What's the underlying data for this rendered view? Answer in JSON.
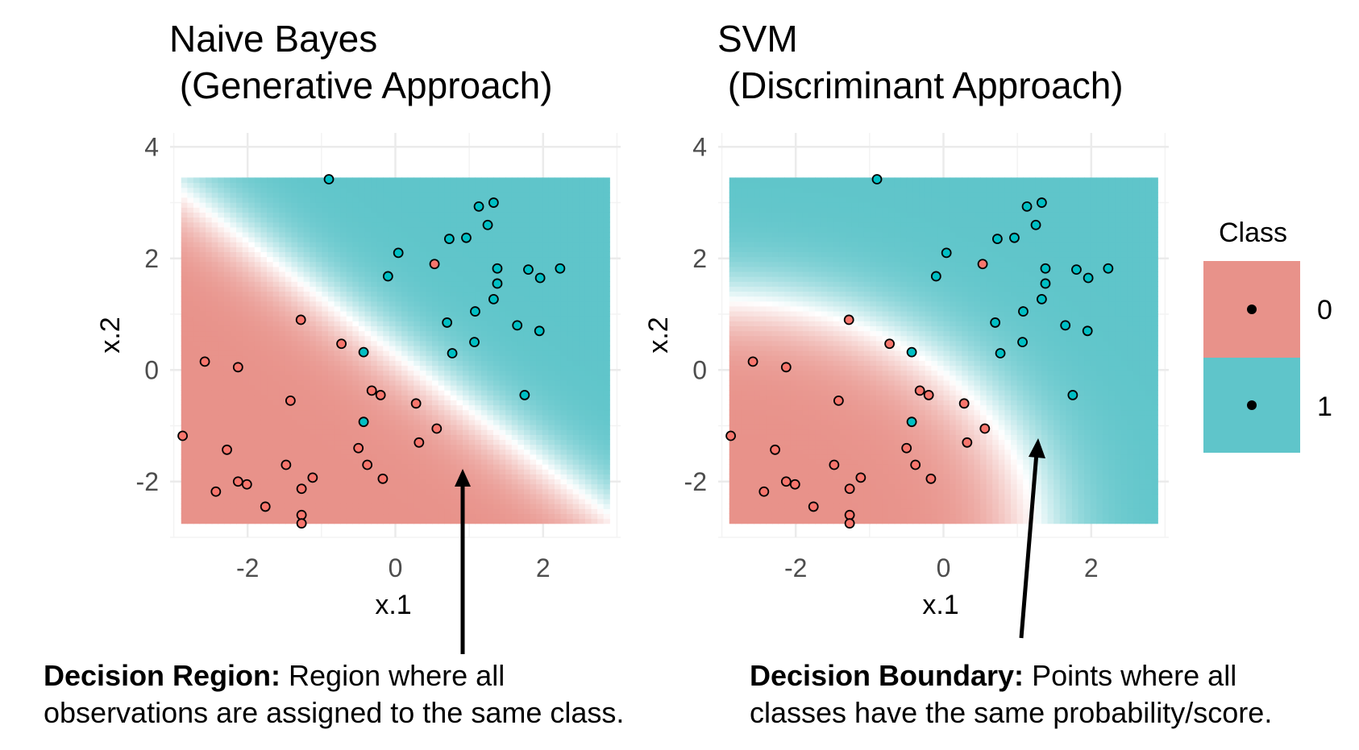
{
  "colors": {
    "class0": "#f8766d",
    "class1": "#00bfc4",
    "region0": "#e8928a",
    "region1": "#5fc5ca",
    "grid": "#ebebeb"
  },
  "legend": {
    "title": "Class",
    "items": [
      {
        "label": "0",
        "color": "#e8928a"
      },
      {
        "label": "1",
        "color": "#5fc5ca"
      }
    ]
  },
  "annotations": {
    "region": {
      "bold": "Decision Region:",
      "text1": " Region where all",
      "text2": "observations are assigned to the same class."
    },
    "boundary": {
      "bold": "Decision Boundary:",
      "text1": " Points where all",
      "text2": "classes have the same probability/score."
    }
  },
  "chart_data": [
    {
      "type": "scatter",
      "model": "nb",
      "title_line1": "Naive Bayes",
      "title_line2": " (Generative Approach)",
      "xlabel": "x.1",
      "ylabel": "x.2",
      "xlim": [
        -3.05,
        3.05
      ],
      "ylim": [
        -3.0,
        4.25
      ],
      "xticks": [
        -2,
        0,
        2
      ],
      "yticks": [
        -2,
        0,
        2,
        4
      ],
      "region_x": [
        -2.9,
        2.9
      ],
      "region_y": [
        -2.75,
        3.45
      ],
      "grid": true
    },
    {
      "type": "scatter",
      "model": "svm",
      "title_line1": "SVM",
      "title_line2": " (Discriminant Approach)",
      "xlabel": "x.1",
      "ylabel": "x.2",
      "xlim": [
        -3.05,
        3.05
      ],
      "ylim": [
        -3.0,
        4.25
      ],
      "xticks": [
        -2,
        0,
        2
      ],
      "yticks": [
        -2,
        0,
        2,
        4
      ],
      "region_x": [
        -2.9,
        2.9
      ],
      "region_y": [
        -2.75,
        3.45
      ],
      "grid": true
    }
  ],
  "points": [
    {
      "x": -0.9,
      "y": 3.42,
      "c": 1
    },
    {
      "x": 1.13,
      "y": 2.93,
      "c": 1
    },
    {
      "x": 1.33,
      "y": 3.0,
      "c": 1
    },
    {
      "x": 1.25,
      "y": 2.6,
      "c": 1
    },
    {
      "x": 0.73,
      "y": 2.35,
      "c": 1
    },
    {
      "x": 0.96,
      "y": 2.37,
      "c": 1
    },
    {
      "x": 0.04,
      "y": 2.1,
      "c": 1
    },
    {
      "x": 0.53,
      "y": 1.9,
      "c": 0
    },
    {
      "x": -0.1,
      "y": 1.68,
      "c": 1
    },
    {
      "x": 1.38,
      "y": 1.82,
      "c": 1
    },
    {
      "x": 1.38,
      "y": 1.55,
      "c": 1
    },
    {
      "x": 1.33,
      "y": 1.27,
      "c": 1
    },
    {
      "x": 1.08,
      "y": 1.05,
      "c": 1
    },
    {
      "x": 1.8,
      "y": 1.8,
      "c": 1
    },
    {
      "x": 1.96,
      "y": 1.65,
      "c": 1
    },
    {
      "x": 2.23,
      "y": 1.82,
      "c": 1
    },
    {
      "x": 0.7,
      "y": 0.85,
      "c": 1
    },
    {
      "x": 1.65,
      "y": 0.8,
      "c": 1
    },
    {
      "x": 1.95,
      "y": 0.7,
      "c": 1
    },
    {
      "x": 1.07,
      "y": 0.5,
      "c": 1
    },
    {
      "x": 0.77,
      "y": 0.3,
      "c": 1
    },
    {
      "x": 1.75,
      "y": -0.45,
      "c": 1
    },
    {
      "x": -1.28,
      "y": 0.9,
      "c": 0
    },
    {
      "x": -0.73,
      "y": 0.47,
      "c": 0
    },
    {
      "x": -0.43,
      "y": 0.32,
      "c": 1
    },
    {
      "x": -2.58,
      "y": 0.15,
      "c": 0
    },
    {
      "x": -2.13,
      "y": 0.05,
      "c": 0
    },
    {
      "x": -0.32,
      "y": -0.37,
      "c": 0
    },
    {
      "x": -0.2,
      "y": -0.45,
      "c": 0
    },
    {
      "x": 0.28,
      "y": -0.6,
      "c": 0
    },
    {
      "x": -1.42,
      "y": -0.55,
      "c": 0
    },
    {
      "x": -0.43,
      "y": -0.93,
      "c": 1
    },
    {
      "x": 0.56,
      "y": -1.05,
      "c": 0
    },
    {
      "x": 0.32,
      "y": -1.3,
      "c": 0
    },
    {
      "x": -2.88,
      "y": -1.18,
      "c": 0
    },
    {
      "x": -2.28,
      "y": -1.43,
      "c": 0
    },
    {
      "x": -0.5,
      "y": -1.4,
      "c": 0
    },
    {
      "x": -1.48,
      "y": -1.7,
      "c": 0
    },
    {
      "x": -0.38,
      "y": -1.7,
      "c": 0
    },
    {
      "x": -0.17,
      "y": -1.95,
      "c": 0
    },
    {
      "x": -1.12,
      "y": -1.93,
      "c": 0
    },
    {
      "x": -2.43,
      "y": -2.18,
      "c": 0
    },
    {
      "x": -2.13,
      "y": -2.0,
      "c": 0
    },
    {
      "x": -2.01,
      "y": -2.05,
      "c": 0
    },
    {
      "x": -1.27,
      "y": -2.13,
      "c": 0
    },
    {
      "x": -1.76,
      "y": -2.45,
      "c": 0
    },
    {
      "x": -1.27,
      "y": -2.6,
      "c": 0
    },
    {
      "x": -1.27,
      "y": -2.75,
      "c": 0
    }
  ]
}
